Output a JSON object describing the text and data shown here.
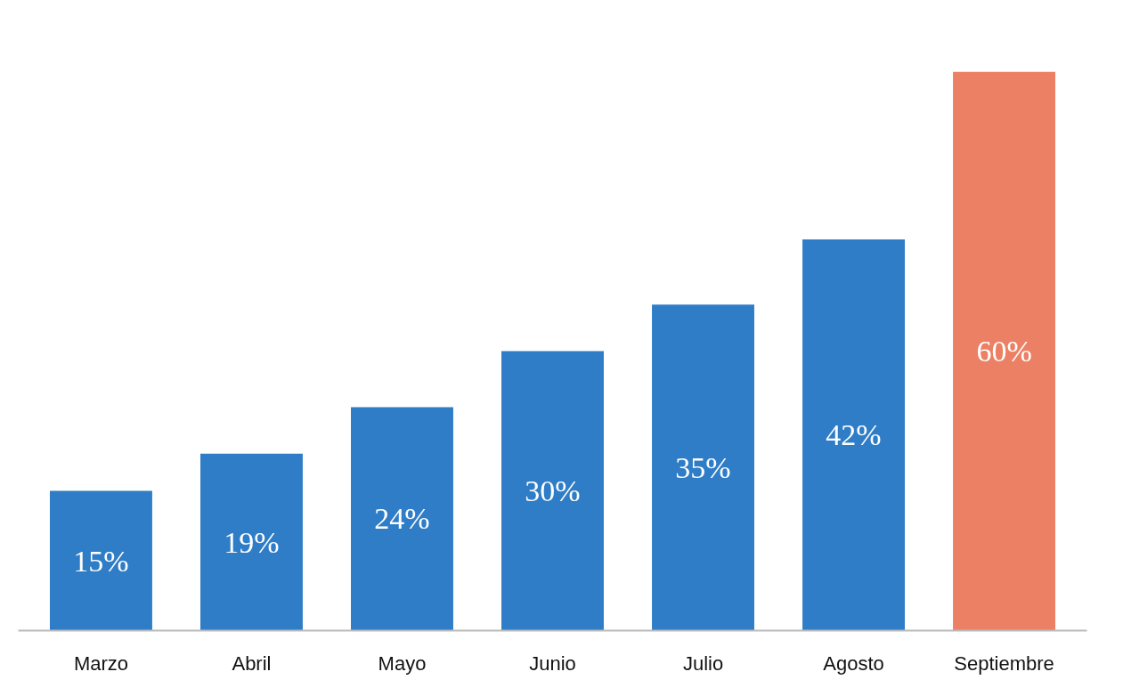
{
  "chart_data": {
    "type": "bar",
    "categories": [
      "Marzo",
      "Abril",
      "Mayo",
      "Junio",
      "Julio",
      "Agosto",
      "Septiembre"
    ],
    "values": [
      15,
      19,
      24,
      30,
      35,
      42,
      60
    ],
    "colors": [
      "#2f7dc6",
      "#2f7dc6",
      "#2f7dc6",
      "#2f7dc6",
      "#2f7dc6",
      "#2f7dc6",
      "#ec8064"
    ],
    "value_labels": [
      "15%",
      "19%",
      "24%",
      "30%",
      "35%",
      "42%",
      "60%"
    ]
  }
}
